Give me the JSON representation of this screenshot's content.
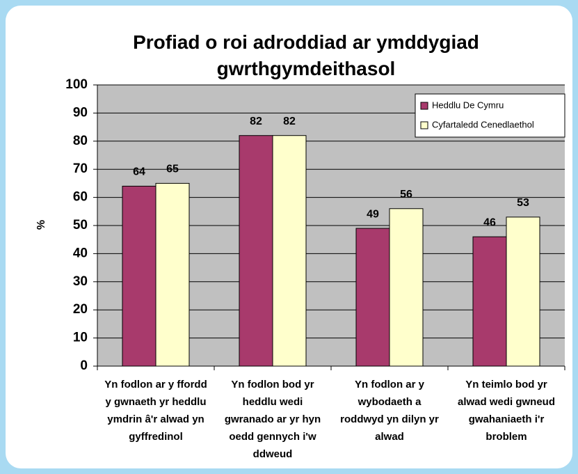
{
  "chart_data": {
    "type": "bar",
    "title": "Profiad o roi adroddiad ar ymddygiad gwrthgymdeithasol",
    "y_label": "%",
    "categories": [
      "Yn fodlon ar y ffordd y gwnaeth yr heddlu ymdrin â'r alwad yn gyffredinol",
      "Yn fodlon bod yr heddlu wedi gwranado ar yr hyn oedd gennych i'w ddweud",
      "Yn fodlon ar y wybodaeth a roddwyd yn dilyn yr alwad",
      "Yn teimlo bod yr alwad wedi gwneud gwahaniaeth i'r broblem"
    ],
    "series": [
      {
        "name": "Heddlu De Cymru",
        "color": "#a83a6c",
        "values": [
          64,
          82,
          49,
          46
        ]
      },
      {
        "name": "Cyfartaledd Cenedlaethol",
        "color": "#ffffcc",
        "values": [
          65,
          82,
          56,
          53
        ]
      }
    ],
    "ylim": [
      0,
      100
    ],
    "yticks": [
      0,
      10,
      20,
      30,
      40,
      50,
      60,
      70,
      80,
      90,
      100
    ],
    "grid": true,
    "legend": "top-right"
  }
}
